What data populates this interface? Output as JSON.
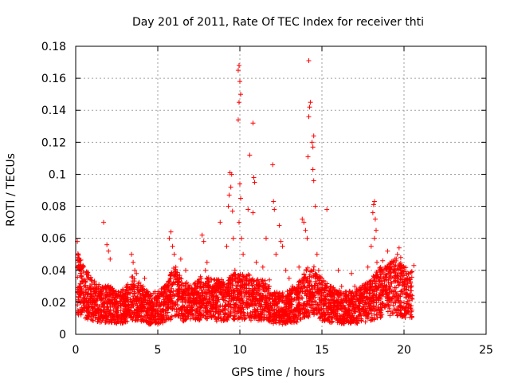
{
  "chart_data": {
    "type": "scatter",
    "title": "Day 201 of 2011, Rate Of TEC Index for receiver thti",
    "xlabel": "GPS time / hours",
    "ylabel": "ROTI / TECUs",
    "xlim": [
      0,
      25
    ],
    "ylim": [
      0,
      0.18
    ],
    "xticks": [
      0,
      5,
      10,
      15,
      20,
      25
    ],
    "yticks": [
      0,
      0.02,
      0.04,
      0.06,
      0.08,
      0.1,
      0.12,
      0.14,
      0.16,
      0.18
    ],
    "xtick_labels": [
      "0",
      "5",
      "10",
      "15",
      "20",
      "25"
    ],
    "ytick_labels": [
      "0",
      "0.02",
      "0.04",
      "0.06",
      "0.08",
      "0.1",
      "0.12",
      "0.14",
      "0.16",
      "0.18"
    ],
    "grid": true,
    "marker": "plus",
    "color": "#ff0000",
    "series": [
      {
        "points": [
          [
            0.1,
            0.058
          ],
          [
            0.15,
            0.05
          ],
          [
            0.2,
            0.043
          ],
          [
            0.3,
            0.04
          ],
          [
            0.35,
            0.036
          ],
          [
            0.45,
            0.042
          ],
          [
            0.5,
            0.03
          ],
          [
            0.6,
            0.025
          ],
          [
            0.7,
            0.02
          ],
          [
            0.8,
            0.017
          ],
          [
            0.9,
            0.022
          ],
          [
            1.0,
            0.016
          ],
          [
            1.1,
            0.012
          ],
          [
            1.2,
            0.02
          ],
          [
            1.3,
            0.028
          ],
          [
            1.4,
            0.03
          ],
          [
            1.5,
            0.024
          ],
          [
            1.6,
            0.018
          ],
          [
            1.7,
            0.07
          ],
          [
            1.8,
            0.014
          ],
          [
            1.9,
            0.056
          ],
          [
            2.0,
            0.052
          ],
          [
            2.1,
            0.047
          ],
          [
            2.2,
            0.02
          ],
          [
            2.3,
            0.015
          ],
          [
            2.5,
            0.013
          ],
          [
            2.6,
            0.018
          ],
          [
            2.8,
            0.022
          ],
          [
            3.0,
            0.016
          ],
          [
            3.2,
            0.02
          ],
          [
            3.3,
            0.028
          ],
          [
            3.4,
            0.05
          ],
          [
            3.5,
            0.045
          ],
          [
            3.6,
            0.04
          ],
          [
            3.7,
            0.038
          ],
          [
            3.8,
            0.026
          ],
          [
            3.9,
            0.018
          ],
          [
            4.0,
            0.022
          ],
          [
            4.1,
            0.03
          ],
          [
            4.2,
            0.035
          ],
          [
            4.3,
            0.025
          ],
          [
            4.5,
            0.016
          ],
          [
            4.7,
            0.014
          ],
          [
            4.9,
            0.018
          ],
          [
            5.0,
            0.022
          ],
          [
            5.2,
            0.012
          ],
          [
            5.4,
            0.02
          ],
          [
            5.6,
            0.03
          ],
          [
            5.7,
            0.06
          ],
          [
            5.8,
            0.064
          ],
          [
            5.9,
            0.055
          ],
          [
            6.0,
            0.05
          ],
          [
            6.1,
            0.042
          ],
          [
            6.2,
            0.035
          ],
          [
            6.3,
            0.028
          ],
          [
            6.4,
            0.047
          ],
          [
            6.5,
            0.025
          ],
          [
            6.7,
            0.04
          ],
          [
            6.8,
            0.02
          ],
          [
            7.0,
            0.015
          ],
          [
            7.2,
            0.022
          ],
          [
            7.4,
            0.03
          ],
          [
            7.6,
            0.036
          ],
          [
            7.7,
            0.062
          ],
          [
            7.8,
            0.058
          ],
          [
            7.9,
            0.04
          ],
          [
            8.0,
            0.045
          ],
          [
            8.2,
            0.025
          ],
          [
            8.4,
            0.02
          ],
          [
            8.6,
            0.018
          ],
          [
            8.8,
            0.07
          ],
          [
            9.0,
            0.03
          ],
          [
            9.2,
            0.055
          ],
          [
            9.3,
            0.08
          ],
          [
            9.4,
            0.101
          ],
          [
            9.5,
            0.1
          ],
          [
            9.45,
            0.092
          ],
          [
            9.35,
            0.087
          ],
          [
            9.55,
            0.077
          ],
          [
            9.6,
            0.06
          ],
          [
            9.7,
            0.04
          ],
          [
            9.8,
            0.035
          ],
          [
            9.9,
            0.165
          ],
          [
            9.95,
            0.168
          ],
          [
            10.0,
            0.158
          ],
          [
            10.05,
            0.15
          ],
          [
            9.95,
            0.145
          ],
          [
            9.9,
            0.134
          ],
          [
            10.0,
            0.094
          ],
          [
            10.05,
            0.085
          ],
          [
            9.95,
            0.07
          ],
          [
            10.1,
            0.06
          ],
          [
            10.2,
            0.05
          ],
          [
            10.4,
            0.035
          ],
          [
            10.5,
            0.078
          ],
          [
            10.6,
            0.112
          ],
          [
            10.7,
            0.032
          ],
          [
            10.8,
            0.132
          ],
          [
            10.85,
            0.098
          ],
          [
            10.9,
            0.095
          ],
          [
            10.8,
            0.076
          ],
          [
            11.0,
            0.045
          ],
          [
            11.2,
            0.03
          ],
          [
            11.4,
            0.042
          ],
          [
            11.6,
            0.06
          ],
          [
            11.8,
            0.034
          ],
          [
            12.0,
            0.106
          ],
          [
            12.05,
            0.083
          ],
          [
            12.1,
            0.078
          ],
          [
            12.2,
            0.05
          ],
          [
            12.4,
            0.068
          ],
          [
            12.5,
            0.058
          ],
          [
            12.6,
            0.055
          ],
          [
            12.8,
            0.04
          ],
          [
            13.0,
            0.035
          ],
          [
            13.2,
            0.03
          ],
          [
            13.4,
            0.028
          ],
          [
            13.6,
            0.042
          ],
          [
            13.8,
            0.072
          ],
          [
            13.9,
            0.07
          ],
          [
            14.0,
            0.065
          ],
          [
            14.1,
            0.06
          ],
          [
            14.15,
            0.111
          ],
          [
            14.2,
            0.136
          ],
          [
            14.25,
            0.142
          ],
          [
            14.3,
            0.145
          ],
          [
            14.2,
            0.171
          ],
          [
            14.4,
            0.12
          ],
          [
            14.45,
            0.117
          ],
          [
            14.5,
            0.124
          ],
          [
            14.45,
            0.103
          ],
          [
            14.5,
            0.096
          ],
          [
            14.6,
            0.08
          ],
          [
            14.7,
            0.05
          ],
          [
            14.8,
            0.04
          ],
          [
            15.0,
            0.035
          ],
          [
            15.3,
            0.078
          ],
          [
            15.5,
            0.03
          ],
          [
            15.7,
            0.025
          ],
          [
            16.0,
            0.04
          ],
          [
            16.2,
            0.03
          ],
          [
            16.5,
            0.025
          ],
          [
            16.8,
            0.038
          ],
          [
            17.0,
            0.03
          ],
          [
            17.3,
            0.022
          ],
          [
            17.6,
            0.03
          ],
          [
            17.8,
            0.042
          ],
          [
            18.0,
            0.055
          ],
          [
            18.1,
            0.076
          ],
          [
            18.15,
            0.081
          ],
          [
            18.2,
            0.083
          ],
          [
            18.25,
            0.072
          ],
          [
            18.3,
            0.065
          ],
          [
            18.2,
            0.06
          ],
          [
            18.35,
            0.045
          ],
          [
            18.5,
            0.04
          ],
          [
            18.7,
            0.046
          ],
          [
            18.9,
            0.03
          ],
          [
            19.0,
            0.052
          ],
          [
            19.2,
            0.035
          ],
          [
            19.4,
            0.045
          ],
          [
            19.6,
            0.05
          ],
          [
            19.7,
            0.054
          ],
          [
            19.8,
            0.048
          ],
          [
            19.9,
            0.04
          ],
          [
            20.0,
            0.03
          ],
          [
            20.2,
            0.025
          ],
          [
            20.3,
            0.035
          ],
          [
            20.4,
            0.032
          ],
          [
            20.6,
            0.043
          ],
          [
            20.5,
            0.022
          ]
        ],
        "dense_band": [
          [
            0.1,
            0.03
          ],
          [
            0.5,
            0.025
          ],
          [
            1.0,
            0.02
          ],
          [
            1.5,
            0.018
          ],
          [
            2.0,
            0.018
          ],
          [
            2.5,
            0.016
          ],
          [
            3.0,
            0.017
          ],
          [
            3.5,
            0.022
          ],
          [
            4.0,
            0.018
          ],
          [
            4.5,
            0.015
          ],
          [
            5.0,
            0.016
          ],
          [
            5.5,
            0.018
          ],
          [
            6.0,
            0.025
          ],
          [
            6.5,
            0.02
          ],
          [
            7.0,
            0.018
          ],
          [
            7.5,
            0.02
          ],
          [
            8.0,
            0.022
          ],
          [
            8.5,
            0.02
          ],
          [
            9.0,
            0.02
          ],
          [
            9.5,
            0.022
          ],
          [
            10.0,
            0.022
          ],
          [
            10.5,
            0.022
          ],
          [
            11.0,
            0.02
          ],
          [
            11.5,
            0.02
          ],
          [
            12.0,
            0.016
          ],
          [
            12.5,
            0.015
          ],
          [
            13.0,
            0.016
          ],
          [
            13.5,
            0.018
          ],
          [
            14.0,
            0.024
          ],
          [
            14.5,
            0.025
          ],
          [
            15.0,
            0.02
          ],
          [
            15.5,
            0.018
          ],
          [
            16.0,
            0.016
          ],
          [
            16.5,
            0.016
          ],
          [
            17.0,
            0.016
          ],
          [
            17.5,
            0.018
          ],
          [
            18.0,
            0.02
          ],
          [
            18.5,
            0.025
          ],
          [
            19.0,
            0.026
          ],
          [
            19.5,
            0.028
          ],
          [
            20.0,
            0.025
          ],
          [
            20.5,
            0.024
          ]
        ]
      }
    ]
  }
}
